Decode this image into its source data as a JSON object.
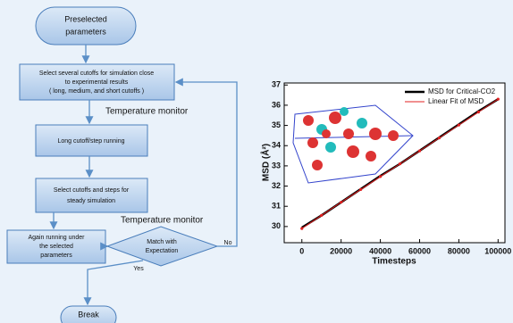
{
  "flowchart": {
    "start": [
      "Preselected",
      "parameters"
    ],
    "select_cutoffs": [
      "Select several cutoffs for simulation close",
      "to experimental results",
      "( long, medium, and short cutoffs )"
    ],
    "monitor_1": "Temperature monitor",
    "long_cutoff": "Long cutoff/step running",
    "select_steps": [
      "Select cutoffs and steps for",
      "steady simulation"
    ],
    "monitor_2": "Temperature monitor",
    "again": [
      "Again running under",
      "the selected",
      "parameters"
    ],
    "decision": [
      "Match with",
      "Expectation"
    ],
    "no": "No",
    "yes": "Yes",
    "end": "Break"
  },
  "chart_data": {
    "type": "line",
    "xlabel": "Timesteps",
    "ylabel": "MSD (Å²)",
    "x": [
      0,
      10000,
      20000,
      30000,
      40000,
      50000,
      60000,
      70000,
      80000,
      90000,
      100000
    ],
    "series": [
      {
        "name": "MSD for Critical-CO2",
        "color": "#000000",
        "values": [
          29.95,
          30.55,
          31.2,
          31.85,
          32.5,
          33.1,
          33.75,
          34.4,
          35.05,
          35.7,
          36.3
        ]
      },
      {
        "name": "Linear Fit of MSD",
        "color": "#e02020",
        "values": [
          29.9,
          30.55,
          31.2,
          31.83,
          32.47,
          33.1,
          33.74,
          34.38,
          35.02,
          35.66,
          36.3
        ]
      }
    ],
    "xlim": [
      -9000,
      103500
    ],
    "ylim": [
      29.2,
      37.1
    ],
    "xticks": [
      0,
      20000,
      40000,
      60000,
      80000,
      100000
    ],
    "yticks": [
      30,
      31,
      32,
      33,
      34,
      35,
      36,
      37
    ],
    "legend": "top-right"
  }
}
